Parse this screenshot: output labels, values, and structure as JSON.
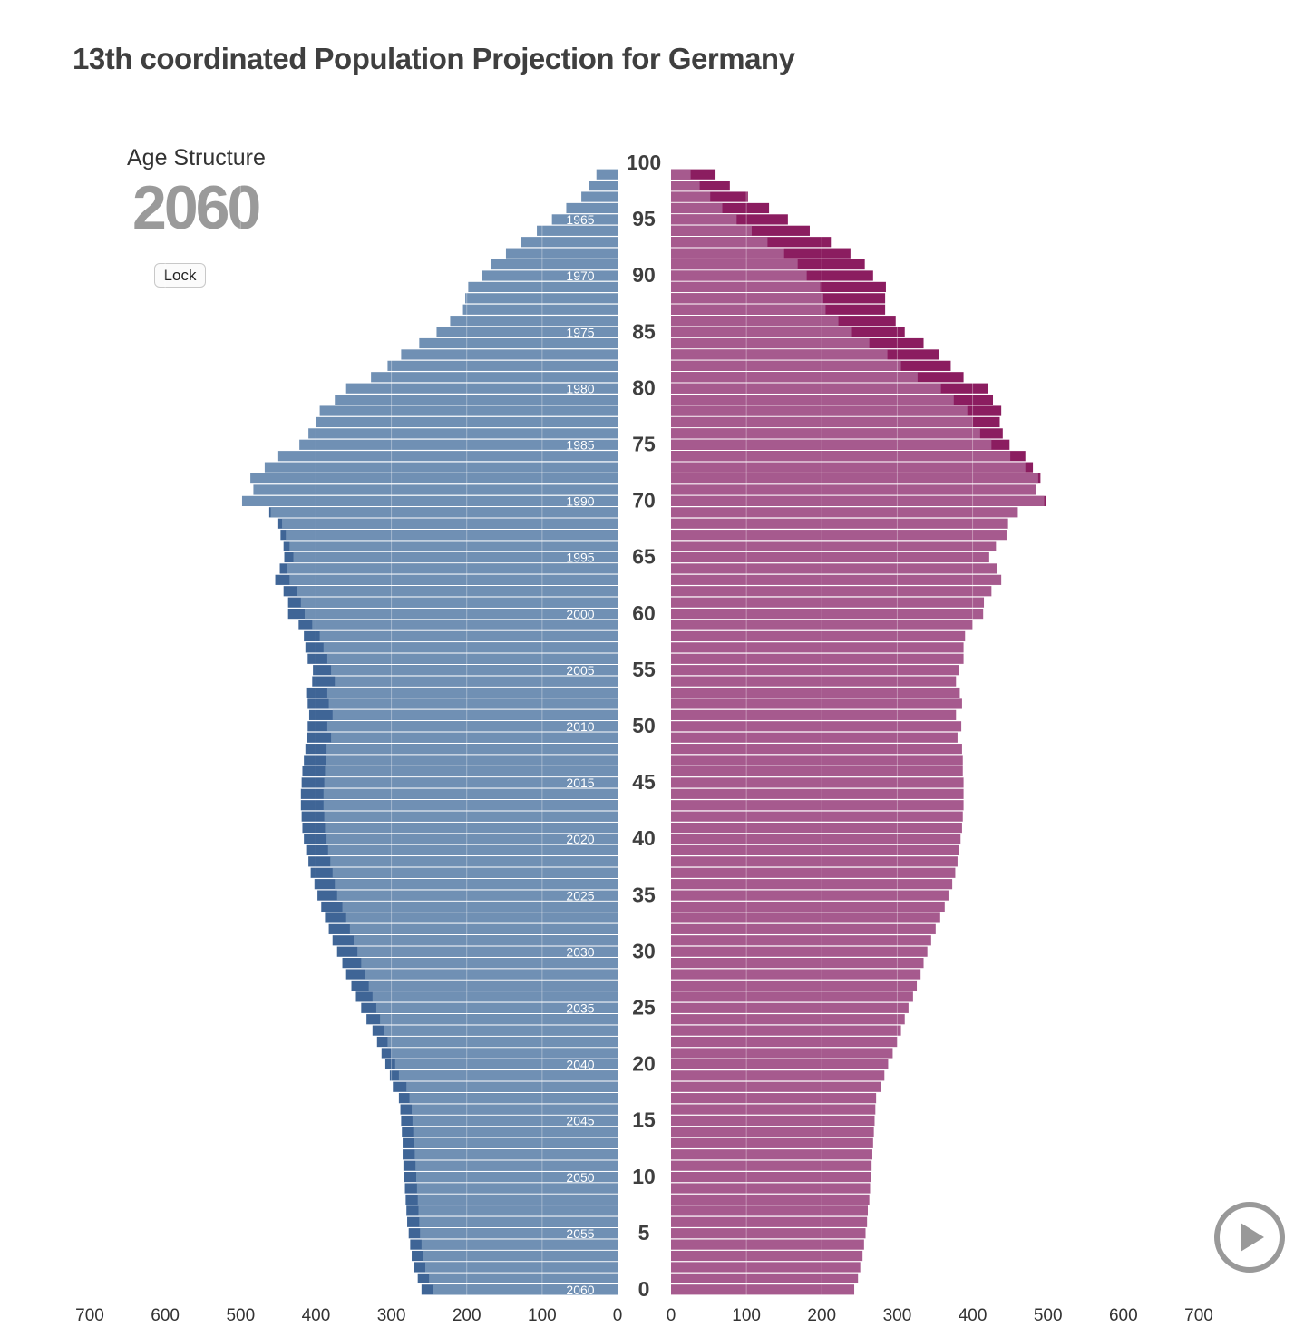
{
  "title": "13th coordinated Population Projection for Germany",
  "panel": {
    "subtitle": "Age Structure",
    "year": "2060",
    "lock_label": "Lock"
  },
  "controls": {
    "play": "play-icon"
  },
  "colors": {
    "male": "#7090b4",
    "male_dark": "#3f6596",
    "female": "#a65a8e",
    "female_dark": "#8b1d60",
    "grid": "#e6e6e6"
  },
  "chart_data": {
    "type": "bar",
    "orientation": "horizontal-population-pyramid",
    "age_ticks": [
      "0",
      "5",
      "10",
      "15",
      "20",
      "25",
      "30",
      "35",
      "40",
      "45",
      "50",
      "55",
      "60",
      "65",
      "70",
      "75",
      "80",
      "85",
      "90",
      "95",
      "100"
    ],
    "cohort_labels": [
      {
        "age": 0,
        "text": "2060"
      },
      {
        "age": 5,
        "text": "2055"
      },
      {
        "age": 10,
        "text": "2050"
      },
      {
        "age": 15,
        "text": "2045"
      },
      {
        "age": 20,
        "text": "2040"
      },
      {
        "age": 25,
        "text": "2035"
      },
      {
        "age": 30,
        "text": "2030"
      },
      {
        "age": 35,
        "text": "2025"
      },
      {
        "age": 40,
        "text": "2020"
      },
      {
        "age": 45,
        "text": "2015"
      },
      {
        "age": 50,
        "text": "2010"
      },
      {
        "age": 55,
        "text": "2005"
      },
      {
        "age": 60,
        "text": "2000"
      },
      {
        "age": 65,
        "text": "1995"
      },
      {
        "age": 70,
        "text": "1990"
      },
      {
        "age": 75,
        "text": "1985"
      },
      {
        "age": 80,
        "text": "1980"
      },
      {
        "age": 85,
        "text": "1975"
      },
      {
        "age": 90,
        "text": "1970"
      },
      {
        "age": 95,
        "text": "1965"
      }
    ],
    "x_ticks_left": [
      "700",
      "600",
      "500",
      "400",
      "300",
      "200",
      "100",
      "0"
    ],
    "x_ticks_right": [
      "0",
      "100",
      "200",
      "300",
      "400",
      "500",
      "600",
      "700"
    ],
    "xlim": [
      0,
      700
    ],
    "ylim": [
      0,
      100
    ],
    "grid": true,
    "male": [
      {
        "age": 0,
        "base": 245,
        "total": 260
      },
      {
        "age": 1,
        "base": 250,
        "total": 265
      },
      {
        "age": 2,
        "base": 255,
        "total": 270
      },
      {
        "age": 3,
        "base": 258,
        "total": 273
      },
      {
        "age": 4,
        "base": 260,
        "total": 275
      },
      {
        "age": 5,
        "base": 262,
        "total": 277
      },
      {
        "age": 6,
        "base": 263,
        "total": 279
      },
      {
        "age": 7,
        "base": 264,
        "total": 280
      },
      {
        "age": 8,
        "base": 265,
        "total": 281
      },
      {
        "age": 9,
        "base": 266,
        "total": 282
      },
      {
        "age": 10,
        "base": 267,
        "total": 283
      },
      {
        "age": 11,
        "base": 268,
        "total": 284
      },
      {
        "age": 12,
        "base": 269,
        "total": 285
      },
      {
        "age": 13,
        "base": 270,
        "total": 285
      },
      {
        "age": 14,
        "base": 271,
        "total": 286
      },
      {
        "age": 15,
        "base": 272,
        "total": 287
      },
      {
        "age": 16,
        "base": 273,
        "total": 288
      },
      {
        "age": 17,
        "base": 276,
        "total": 290
      },
      {
        "age": 18,
        "base": 280,
        "total": 298
      },
      {
        "age": 19,
        "base": 290,
        "total": 302
      },
      {
        "age": 20,
        "base": 295,
        "total": 308
      },
      {
        "age": 21,
        "base": 300,
        "total": 313
      },
      {
        "age": 22,
        "base": 305,
        "total": 319
      },
      {
        "age": 23,
        "base": 310,
        "total": 325
      },
      {
        "age": 24,
        "base": 315,
        "total": 333
      },
      {
        "age": 25,
        "base": 320,
        "total": 340
      },
      {
        "age": 26,
        "base": 325,
        "total": 347
      },
      {
        "age": 27,
        "base": 330,
        "total": 353
      },
      {
        "age": 28,
        "base": 335,
        "total": 360
      },
      {
        "age": 29,
        "base": 340,
        "total": 365
      },
      {
        "age": 30,
        "base": 345,
        "total": 372
      },
      {
        "age": 31,
        "base": 350,
        "total": 378
      },
      {
        "age": 32,
        "base": 355,
        "total": 383
      },
      {
        "age": 33,
        "base": 360,
        "total": 388
      },
      {
        "age": 34,
        "base": 365,
        "total": 393
      },
      {
        "age": 35,
        "base": 372,
        "total": 398
      },
      {
        "age": 36,
        "base": 375,
        "total": 402
      },
      {
        "age": 37,
        "base": 378,
        "total": 407
      },
      {
        "age": 38,
        "base": 381,
        "total": 410
      },
      {
        "age": 39,
        "base": 384,
        "total": 413
      },
      {
        "age": 40,
        "base": 386,
        "total": 416
      },
      {
        "age": 41,
        "base": 388,
        "total": 418
      },
      {
        "age": 42,
        "base": 389,
        "total": 419
      },
      {
        "age": 43,
        "base": 390,
        "total": 420
      },
      {
        "age": 44,
        "base": 390,
        "total": 420
      },
      {
        "age": 45,
        "base": 389,
        "total": 419
      },
      {
        "age": 46,
        "base": 388,
        "total": 418
      },
      {
        "age": 47,
        "base": 387,
        "total": 416
      },
      {
        "age": 48,
        "base": 386,
        "total": 414
      },
      {
        "age": 49,
        "base": 380,
        "total": 412
      },
      {
        "age": 50,
        "base": 385,
        "total": 411
      },
      {
        "age": 51,
        "base": 378,
        "total": 409
      },
      {
        "age": 52,
        "base": 383,
        "total": 411
      },
      {
        "age": 53,
        "base": 385,
        "total": 413
      },
      {
        "age": 54,
        "base": 375,
        "total": 405
      },
      {
        "age": 55,
        "base": 380,
        "total": 404
      },
      {
        "age": 56,
        "base": 385,
        "total": 411
      },
      {
        "age": 57,
        "base": 390,
        "total": 414
      },
      {
        "age": 58,
        "base": 395,
        "total": 416
      },
      {
        "age": 59,
        "base": 405,
        "total": 423
      },
      {
        "age": 60,
        "base": 415,
        "total": 437
      },
      {
        "age": 61,
        "base": 420,
        "total": 437
      },
      {
        "age": 62,
        "base": 425,
        "total": 443
      },
      {
        "age": 63,
        "base": 435,
        "total": 454
      },
      {
        "age": 64,
        "base": 438,
        "total": 448
      },
      {
        "age": 65,
        "base": 430,
        "total": 442
      },
      {
        "age": 66,
        "base": 435,
        "total": 443
      },
      {
        "age": 67,
        "base": 440,
        "total": 447
      },
      {
        "age": 68,
        "base": 445,
        "total": 450
      },
      {
        "age": 69,
        "base": 460,
        "total": 462
      },
      {
        "age": 70,
        "base": 498,
        "total": 498
      },
      {
        "age": 71,
        "base": 483,
        "total": 483
      },
      {
        "age": 72,
        "base": 487,
        "total": 487
      },
      {
        "age": 73,
        "base": 468,
        "total": 468
      },
      {
        "age": 74,
        "base": 450,
        "total": 450
      },
      {
        "age": 75,
        "base": 422,
        "total": 422
      },
      {
        "age": 76,
        "base": 410,
        "total": 410
      },
      {
        "age": 77,
        "base": 400,
        "total": 400
      },
      {
        "age": 78,
        "base": 395,
        "total": 395
      },
      {
        "age": 79,
        "base": 375,
        "total": 375
      },
      {
        "age": 80,
        "base": 360,
        "total": 360
      },
      {
        "age": 81,
        "base": 327,
        "total": 327
      },
      {
        "age": 82,
        "base": 305,
        "total": 305
      },
      {
        "age": 83,
        "base": 287,
        "total": 287
      },
      {
        "age": 84,
        "base": 263,
        "total": 263
      },
      {
        "age": 85,
        "base": 240,
        "total": 240
      },
      {
        "age": 86,
        "base": 222,
        "total": 222
      },
      {
        "age": 87,
        "base": 205,
        "total": 205
      },
      {
        "age": 88,
        "base": 202,
        "total": 202
      },
      {
        "age": 89,
        "base": 198,
        "total": 198
      },
      {
        "age": 90,
        "base": 180,
        "total": 180
      },
      {
        "age": 91,
        "base": 168,
        "total": 168
      },
      {
        "age": 92,
        "base": 148,
        "total": 148
      },
      {
        "age": 93,
        "base": 128,
        "total": 128
      },
      {
        "age": 94,
        "base": 107,
        "total": 107
      },
      {
        "age": 95,
        "base": 87,
        "total": 87
      },
      {
        "age": 96,
        "base": 68,
        "total": 68
      },
      {
        "age": 97,
        "base": 48,
        "total": 48
      },
      {
        "age": 98,
        "base": 38,
        "total": 38
      },
      {
        "age": 99,
        "base": 28,
        "total": 28
      }
    ],
    "female": [
      {
        "age": 0,
        "base": 243,
        "total": 243
      },
      {
        "age": 1,
        "base": 248,
        "total": 248
      },
      {
        "age": 2,
        "base": 251,
        "total": 251
      },
      {
        "age": 3,
        "base": 254,
        "total": 254
      },
      {
        "age": 4,
        "base": 256,
        "total": 256
      },
      {
        "age": 5,
        "base": 258,
        "total": 258
      },
      {
        "age": 6,
        "base": 260,
        "total": 260
      },
      {
        "age": 7,
        "base": 261,
        "total": 261
      },
      {
        "age": 8,
        "base": 263,
        "total": 263
      },
      {
        "age": 9,
        "base": 264,
        "total": 264
      },
      {
        "age": 10,
        "base": 265,
        "total": 265
      },
      {
        "age": 11,
        "base": 266,
        "total": 266
      },
      {
        "age": 12,
        "base": 267,
        "total": 267
      },
      {
        "age": 13,
        "base": 268,
        "total": 268
      },
      {
        "age": 14,
        "base": 269,
        "total": 269
      },
      {
        "age": 15,
        "base": 270,
        "total": 270
      },
      {
        "age": 16,
        "base": 271,
        "total": 271
      },
      {
        "age": 17,
        "base": 272,
        "total": 272
      },
      {
        "age": 18,
        "base": 278,
        "total": 278
      },
      {
        "age": 19,
        "base": 283,
        "total": 283
      },
      {
        "age": 20,
        "base": 288,
        "total": 288
      },
      {
        "age": 21,
        "base": 294,
        "total": 294
      },
      {
        "age": 22,
        "base": 300,
        "total": 300
      },
      {
        "age": 23,
        "base": 305,
        "total": 305
      },
      {
        "age": 24,
        "base": 310,
        "total": 310
      },
      {
        "age": 25,
        "base": 315,
        "total": 315
      },
      {
        "age": 26,
        "base": 321,
        "total": 321
      },
      {
        "age": 27,
        "base": 326,
        "total": 326
      },
      {
        "age": 28,
        "base": 331,
        "total": 331
      },
      {
        "age": 29,
        "base": 335,
        "total": 335
      },
      {
        "age": 30,
        "base": 340,
        "total": 340
      },
      {
        "age": 31,
        "base": 345,
        "total": 345
      },
      {
        "age": 32,
        "base": 351,
        "total": 351
      },
      {
        "age": 33,
        "base": 357,
        "total": 357
      },
      {
        "age": 34,
        "base": 363,
        "total": 363
      },
      {
        "age": 35,
        "base": 368,
        "total": 368
      },
      {
        "age": 36,
        "base": 373,
        "total": 373
      },
      {
        "age": 37,
        "base": 377,
        "total": 377
      },
      {
        "age": 38,
        "base": 380,
        "total": 380
      },
      {
        "age": 39,
        "base": 382,
        "total": 382
      },
      {
        "age": 40,
        "base": 384,
        "total": 384
      },
      {
        "age": 41,
        "base": 386,
        "total": 386
      },
      {
        "age": 42,
        "base": 387,
        "total": 387
      },
      {
        "age": 43,
        "base": 388,
        "total": 388
      },
      {
        "age": 44,
        "base": 388,
        "total": 388
      },
      {
        "age": 45,
        "base": 388,
        "total": 388
      },
      {
        "age": 46,
        "base": 387,
        "total": 387
      },
      {
        "age": 47,
        "base": 387,
        "total": 387
      },
      {
        "age": 48,
        "base": 386,
        "total": 386
      },
      {
        "age": 49,
        "base": 380,
        "total": 380
      },
      {
        "age": 50,
        "base": 385,
        "total": 385
      },
      {
        "age": 51,
        "base": 378,
        "total": 378
      },
      {
        "age": 52,
        "base": 386,
        "total": 386
      },
      {
        "age": 53,
        "base": 383,
        "total": 383
      },
      {
        "age": 54,
        "base": 378,
        "total": 378
      },
      {
        "age": 55,
        "base": 382,
        "total": 382
      },
      {
        "age": 56,
        "base": 388,
        "total": 388
      },
      {
        "age": 57,
        "base": 388,
        "total": 388
      },
      {
        "age": 58,
        "base": 390,
        "total": 390
      },
      {
        "age": 59,
        "base": 400,
        "total": 400
      },
      {
        "age": 60,
        "base": 414,
        "total": 414
      },
      {
        "age": 61,
        "base": 415,
        "total": 415
      },
      {
        "age": 62,
        "base": 425,
        "total": 425
      },
      {
        "age": 63,
        "base": 438,
        "total": 438
      },
      {
        "age": 64,
        "base": 432,
        "total": 432
      },
      {
        "age": 65,
        "base": 422,
        "total": 422
      },
      {
        "age": 66,
        "base": 431,
        "total": 431
      },
      {
        "age": 67,
        "base": 445,
        "total": 445
      },
      {
        "age": 68,
        "base": 447,
        "total": 447
      },
      {
        "age": 69,
        "base": 460,
        "total": 460
      },
      {
        "age": 70,
        "base": 495,
        "total": 497
      },
      {
        "age": 71,
        "base": 484,
        "total": 484
      },
      {
        "age": 72,
        "base": 487,
        "total": 490
      },
      {
        "age": 73,
        "base": 470,
        "total": 480
      },
      {
        "age": 74,
        "base": 450,
        "total": 470
      },
      {
        "age": 75,
        "base": 425,
        "total": 449
      },
      {
        "age": 76,
        "base": 410,
        "total": 440
      },
      {
        "age": 77,
        "base": 400,
        "total": 436
      },
      {
        "age": 78,
        "base": 393,
        "total": 438
      },
      {
        "age": 79,
        "base": 375,
        "total": 427
      },
      {
        "age": 80,
        "base": 358,
        "total": 420
      },
      {
        "age": 81,
        "base": 327,
        "total": 388
      },
      {
        "age": 82,
        "base": 305,
        "total": 371
      },
      {
        "age": 83,
        "base": 287,
        "total": 355
      },
      {
        "age": 84,
        "base": 263,
        "total": 335
      },
      {
        "age": 85,
        "base": 240,
        "total": 310
      },
      {
        "age": 86,
        "base": 222,
        "total": 298
      },
      {
        "age": 87,
        "base": 205,
        "total": 284
      },
      {
        "age": 88,
        "base": 202,
        "total": 284
      },
      {
        "age": 89,
        "base": 198,
        "total": 285
      },
      {
        "age": 90,
        "base": 180,
        "total": 268
      },
      {
        "age": 91,
        "base": 168,
        "total": 257
      },
      {
        "age": 92,
        "base": 150,
        "total": 238
      },
      {
        "age": 93,
        "base": 128,
        "total": 212
      },
      {
        "age": 94,
        "base": 107,
        "total": 184
      },
      {
        "age": 95,
        "base": 87,
        "total": 155
      },
      {
        "age": 96,
        "base": 68,
        "total": 130
      },
      {
        "age": 97,
        "base": 52,
        "total": 102
      },
      {
        "age": 98,
        "base": 38,
        "total": 78
      },
      {
        "age": 99,
        "base": 26,
        "total": 59
      }
    ]
  }
}
